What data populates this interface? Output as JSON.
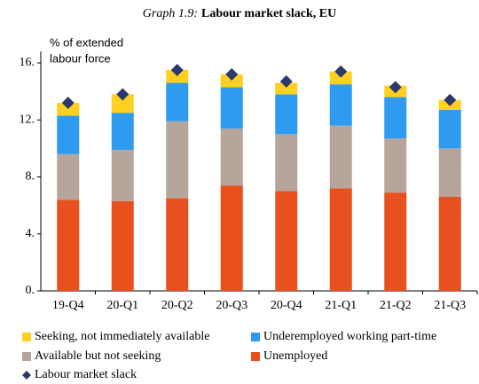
{
  "chart_data": {
    "type": "stacked_bar",
    "title_prefix": "Graph 1.9:",
    "title": "Labour market slack, EU",
    "ylabel": [
      "% of extended",
      "labour force"
    ],
    "categories": [
      "19-Q4",
      "20-Q1",
      "20-Q2",
      "20-Q3",
      "20-Q4",
      "21-Q1",
      "21-Q2",
      "21-Q3"
    ],
    "series": [
      {
        "name": "Unemployed",
        "color": "#E8501E",
        "values": [
          6.4,
          6.3,
          6.5,
          7.4,
          7.0,
          7.2,
          6.9,
          6.6
        ]
      },
      {
        "name": "Available but not seeking",
        "color": "#B5A59B",
        "values": [
          3.2,
          3.6,
          5.4,
          4.0,
          4.0,
          4.4,
          3.8,
          3.4
        ]
      },
      {
        "name": "Underemployed working part-time",
        "color": "#2F9BF0",
        "values": [
          2.7,
          2.6,
          2.7,
          2.9,
          2.8,
          2.9,
          2.9,
          2.7
        ]
      },
      {
        "name": "Seeking, not immediately available",
        "color": "#FFD020",
        "values": [
          0.9,
          1.3,
          0.9,
          0.9,
          0.8,
          0.9,
          0.8,
          0.7
        ]
      }
    ],
    "markers": {
      "name": "Labour market slack",
      "color": "#2B3A6B",
      "values": [
        13.2,
        13.8,
        15.5,
        15.2,
        14.7,
        15.4,
        14.3,
        13.4
      ]
    },
    "ylim": [
      0,
      16
    ],
    "yticks": [
      {
        "value": 0,
        "label": "0."
      },
      {
        "value": 4,
        "label": "4."
      },
      {
        "value": 8,
        "label": "8."
      },
      {
        "value": 12,
        "label": "12."
      },
      {
        "value": 16,
        "label": "16."
      }
    ]
  }
}
